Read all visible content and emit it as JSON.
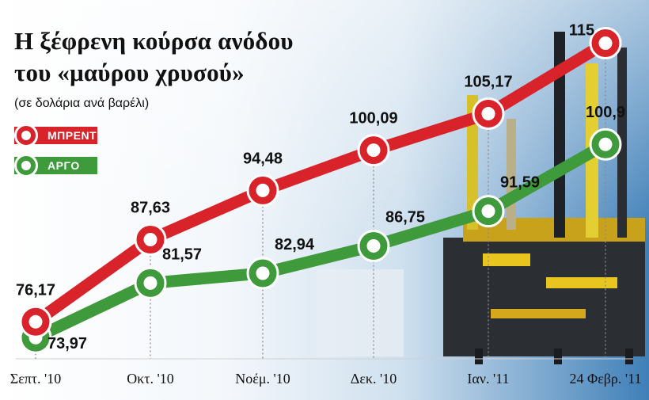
{
  "title": {
    "line1": "Η ξέφρενη κούρσα ανόδου",
    "line2": "του «μαύρου χρυσού»"
  },
  "subtitle": "(σε δολάρια ανά βαρέλι)",
  "colors": {
    "brent": "#d9232b",
    "argo": "#3f9a3c",
    "dash": "#8a8a8a"
  },
  "legend": [
    {
      "name": "ΜΠΡΕΝΤ",
      "color": "#d9232b"
    },
    {
      "name": "ΑΡΓΟ",
      "color": "#3f9a3c"
    }
  ],
  "chart_data": {
    "type": "line",
    "categories": [
      "Σεπτ. '10",
      "Οκτ. '10",
      "Νοέμ. '10",
      "Δεκ. '10",
      "Ιαν. '11",
      "24 Φεβρ. '11"
    ],
    "series": [
      {
        "name": "ΜΠΡΕΝΤ",
        "values": [
          76.17,
          87.63,
          94.48,
          100.09,
          105.17,
          115
        ],
        "labels": [
          "76,17",
          "87,63",
          "94,48",
          "100,09",
          "105,17",
          "115"
        ]
      },
      {
        "name": "ΑΡΓΟ",
        "values": [
          73.97,
          81.57,
          82.94,
          86.75,
          91.59,
          100.9
        ],
        "labels": [
          "73,97",
          "81,57",
          "82,94",
          "86,75",
          "91,59",
          "100,9"
        ]
      }
    ],
    "ylabel": "δολάρια ανά βαρέλι",
    "grid": false,
    "legend_position": "top-left"
  }
}
